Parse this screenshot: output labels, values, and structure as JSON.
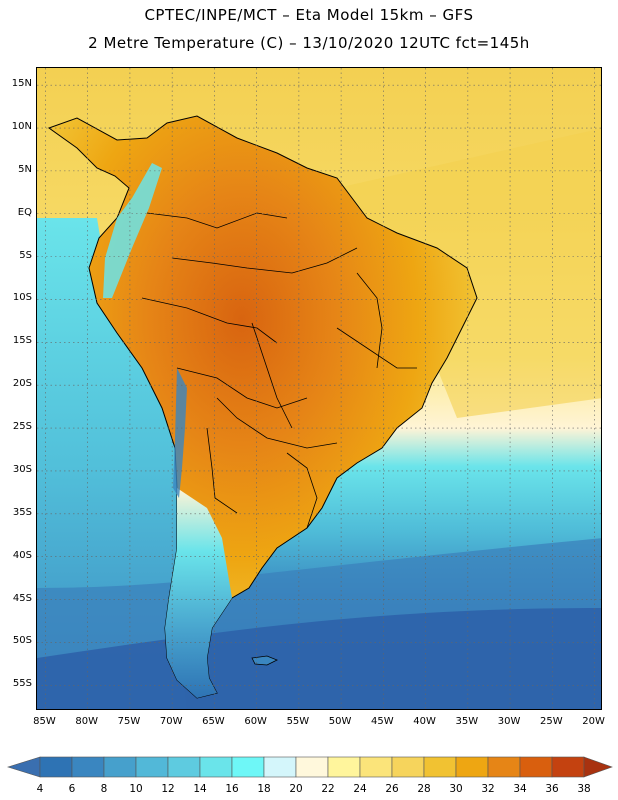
{
  "title_line1": "CPTEC/INPE/MCT –  Eta Model 15km – GFS",
  "title_line2": "2 Metre Temperature (C) – 13/10/2020 12UTC fct=145h",
  "map": {
    "lon_range": [
      -86,
      -19
    ],
    "lat_range": [
      17,
      -58
    ],
    "lat_ticks": [
      {
        "value": 15,
        "label": "15N"
      },
      {
        "value": 10,
        "label": "10N"
      },
      {
        "value": 5,
        "label": "5N"
      },
      {
        "value": 0,
        "label": "EQ"
      },
      {
        "value": -5,
        "label": "5S"
      },
      {
        "value": -10,
        "label": "10S"
      },
      {
        "value": -15,
        "label": "15S"
      },
      {
        "value": -20,
        "label": "20S"
      },
      {
        "value": -25,
        "label": "25S"
      },
      {
        "value": -30,
        "label": "30S"
      },
      {
        "value": -35,
        "label": "35S"
      },
      {
        "value": -40,
        "label": "40S"
      },
      {
        "value": -45,
        "label": "45S"
      },
      {
        "value": -50,
        "label": "50S"
      },
      {
        "value": -55,
        "label": "55S"
      }
    ],
    "lon_ticks": [
      {
        "value": -85,
        "label": "85W"
      },
      {
        "value": -80,
        "label": "80W"
      },
      {
        "value": -75,
        "label": "75W"
      },
      {
        "value": -70,
        "label": "70W"
      },
      {
        "value": -65,
        "label": "65W"
      },
      {
        "value": -60,
        "label": "60W"
      },
      {
        "value": -55,
        "label": "55W"
      },
      {
        "value": -50,
        "label": "50W"
      },
      {
        "value": -45,
        "label": "45W"
      },
      {
        "value": -40,
        "label": "40W"
      },
      {
        "value": -35,
        "label": "35W"
      },
      {
        "value": -30,
        "label": "30W"
      },
      {
        "value": -25,
        "label": "25W"
      },
      {
        "value": -20,
        "label": "20W"
      }
    ]
  },
  "colorbar": {
    "labels": [
      "4",
      "6",
      "8",
      "10",
      "12",
      "14",
      "16",
      "18",
      "20",
      "22",
      "24",
      "26",
      "28",
      "30",
      "32",
      "34",
      "36",
      "38"
    ],
    "colors": [
      "#3a6fb0",
      "#2e73b4",
      "#3a86c0",
      "#46a0cc",
      "#52b8d8",
      "#5ecbe0",
      "#6ae4ea",
      "#6ef7f7",
      "#d4f6fb",
      "#fff8dc",
      "#fff59c",
      "#fbe47a",
      "#f6d45c",
      "#f1c232",
      "#eea612",
      "#e68516",
      "#d95f0e",
      "#c44210",
      "#a83210"
    ]
  },
  "colors": {
    "ocean_cold": "#2f68b0",
    "ocean_mid": "#4aa8d4",
    "ocean_cool": "#5fd0e0",
    "ocean_warm": "#f4d050",
    "land_hot": "#e0801a",
    "land_warm": "#f0b030"
  }
}
